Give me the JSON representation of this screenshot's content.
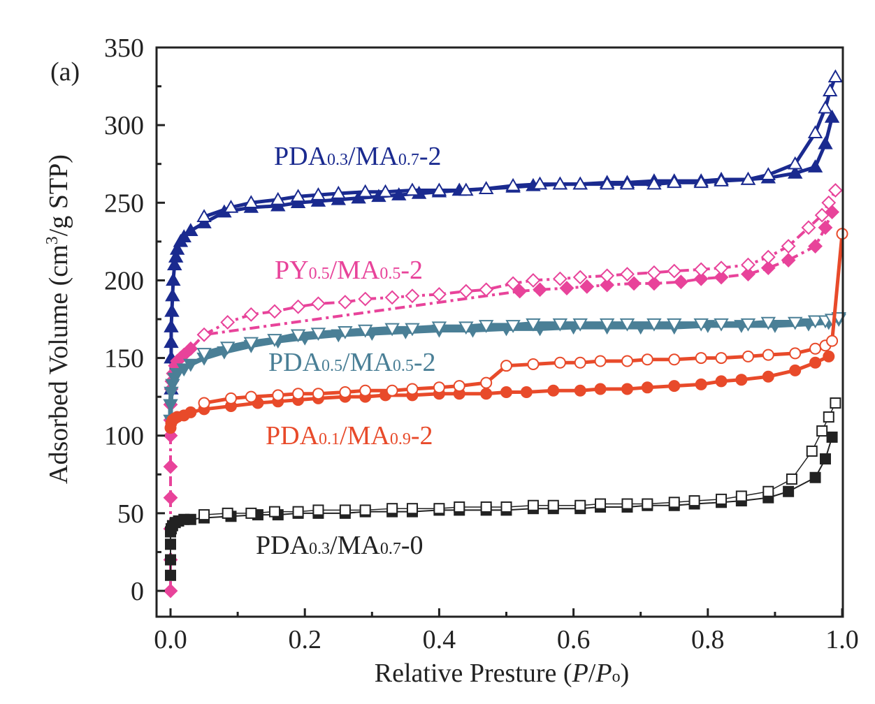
{
  "chart_data": {
    "type": "line",
    "panel_label": "(a)",
    "xlabel": {
      "pre": "Relative Presture (",
      "p1": "P",
      "slash": "/",
      "p2": "P",
      "sub": "o",
      "post": ")"
    },
    "ylabel": {
      "pre": "Adsorbed Volume (cm",
      "sup": "3",
      "post": "/g STP)"
    },
    "xlim": [
      0,
      1.0
    ],
    "ylim": [
      0,
      350
    ],
    "xticks": [
      "0.0",
      "0.2",
      "0.4",
      "0.6",
      "0.8",
      "1.0"
    ],
    "yticks": [
      "0",
      "50",
      "100",
      "150",
      "200",
      "250",
      "300",
      "350"
    ],
    "grid": false,
    "colors": {
      "navy": "#1a2a8f",
      "pink": "#e8439a",
      "teal": "#4a7f96",
      "red": "#e84a2a",
      "black": "#222222"
    },
    "series_labels": [
      {
        "parts": [
          [
            "PDA",
            false
          ],
          [
            "0.3",
            true
          ],
          [
            "/MA",
            false
          ],
          [
            "0.7",
            true
          ],
          [
            "-2",
            false
          ]
        ],
        "color": "#1a2a8f"
      },
      {
        "parts": [
          [
            "PY",
            false
          ],
          [
            "0.5",
            true
          ],
          [
            "/MA",
            false
          ],
          [
            "0.5",
            true
          ],
          [
            "-2",
            false
          ]
        ],
        "color": "#e8439a"
      },
      {
        "parts": [
          [
            "PDA",
            false
          ],
          [
            "0.5",
            true
          ],
          [
            "/MA",
            false
          ],
          [
            "0.5",
            true
          ],
          [
            "-2",
            false
          ]
        ],
        "color": "#4a7f96"
      },
      {
        "parts": [
          [
            "PDA",
            false
          ],
          [
            "0.1",
            true
          ],
          [
            "/MA",
            false
          ],
          [
            "0.9",
            true
          ],
          [
            "-2",
            false
          ]
        ],
        "color": "#e84a2a"
      },
      {
        "parts": [
          [
            "PDA",
            false
          ],
          [
            "0.3",
            true
          ],
          [
            "/MA",
            false
          ],
          [
            "0.7",
            true
          ],
          [
            "-0",
            false
          ]
        ],
        "color": "#222222"
      }
    ],
    "series": [
      {
        "id": "pda03-ma07-2-adsorption",
        "color": "#1a2a8f",
        "marker": "triangle",
        "filled": true,
        "dash": false,
        "stroke_width": 5,
        "x": [
          0.001,
          0.001,
          0.001,
          0.001,
          0.002,
          0.003,
          0.004,
          0.006,
          0.008,
          0.01,
          0.015,
          0.02,
          0.03,
          0.05,
          0.08,
          0.12,
          0.16,
          0.19,
          0.22,
          0.25,
          0.28,
          0.31,
          0.34,
          0.37,
          0.4,
          0.43,
          0.47,
          0.51,
          0.54,
          0.58,
          0.61,
          0.65,
          0.68,
          0.72,
          0.75,
          0.79,
          0.82,
          0.86,
          0.89,
          0.93,
          0.96,
          0.975,
          0.985
        ],
        "y": [
          130,
          150,
          160,
          170,
          180,
          190,
          200,
          210,
          215,
          220,
          225,
          228,
          232,
          237,
          244,
          247,
          248,
          250,
          251,
          252,
          253,
          254,
          255,
          256,
          257,
          258,
          259,
          260,
          261,
          262,
          262,
          263,
          263,
          264,
          264,
          264,
          265,
          265,
          266,
          269,
          273,
          288,
          305
        ]
      },
      {
        "id": "pda03-ma07-2-desorption",
        "color": "#1a2a8f",
        "marker": "triangle",
        "filled": false,
        "dash": false,
        "stroke_width": 5,
        "x": [
          0.05,
          0.09,
          0.12,
          0.16,
          0.19,
          0.22,
          0.25,
          0.29,
          0.32,
          0.36,
          0.4,
          0.44,
          0.47,
          0.51,
          0.55,
          0.58,
          0.61,
          0.65,
          0.68,
          0.72,
          0.75,
          0.79,
          0.82,
          0.86,
          0.89,
          0.93,
          0.96,
          0.975,
          0.982,
          0.99
        ],
        "y": [
          241,
          247,
          250,
          252,
          254,
          255,
          256,
          257,
          257,
          258,
          258,
          258,
          259,
          261,
          262,
          262,
          262,
          262,
          262,
          262,
          263,
          263,
          264,
          265,
          268,
          275,
          295,
          311,
          322,
          331
        ]
      },
      {
        "id": "py05-ma05-2-adsorption",
        "color": "#e8439a",
        "marker": "diamond",
        "filled": true,
        "dash": true,
        "stroke_width": 4,
        "x": [
          0.0,
          0.0,
          0.0,
          0.0,
          0.0,
          0.0,
          0.0,
          0.0,
          0.001,
          0.002,
          0.004,
          0.007,
          0.01,
          0.015,
          0.02,
          0.03,
          0.05,
          0.52,
          0.55,
          0.59,
          0.62,
          0.65,
          0.69,
          0.72,
          0.76,
          0.79,
          0.82,
          0.86,
          0.89,
          0.92,
          0.96,
          0.975,
          0.985
        ],
        "y": [
          0,
          20,
          40,
          60,
          80,
          100,
          110,
          120,
          130,
          135,
          140,
          145,
          148,
          150,
          152,
          156,
          165,
          193,
          194,
          195,
          196,
          197,
          198,
          198,
          199,
          201,
          202,
          204,
          208,
          213,
          222,
          234,
          244
        ]
      },
      {
        "id": "py05-ma05-2-desorption",
        "color": "#e8439a",
        "marker": "diamond",
        "filled": false,
        "dash": true,
        "stroke_width": 4,
        "x": [
          0.05,
          0.085,
          0.12,
          0.155,
          0.19,
          0.22,
          0.26,
          0.29,
          0.33,
          0.36,
          0.4,
          0.44,
          0.47,
          0.51,
          0.54,
          0.58,
          0.61,
          0.65,
          0.68,
          0.72,
          0.75,
          0.79,
          0.82,
          0.86,
          0.89,
          0.92,
          0.95,
          0.97,
          0.98,
          0.99
        ],
        "y": [
          165,
          173,
          178,
          180,
          183,
          185,
          186,
          188,
          189,
          190,
          191,
          193,
          194,
          198,
          200,
          201,
          202,
          203,
          204,
          205,
          206,
          207,
          208,
          210,
          215,
          222,
          234,
          242,
          250,
          258
        ]
      },
      {
        "id": "pda05-ma05-2-adsorption",
        "color": "#4a7f96",
        "marker": "tri-down",
        "filled": true,
        "dash": false,
        "stroke_width": 7,
        "x": [
          0.0,
          0.0,
          0.001,
          0.003,
          0.006,
          0.01,
          0.02,
          0.03,
          0.05,
          0.08,
          0.12,
          0.16,
          0.2,
          0.25,
          0.3,
          0.35,
          0.4,
          0.45,
          0.5,
          0.55,
          0.6,
          0.65,
          0.7,
          0.75,
          0.8,
          0.85,
          0.9,
          0.95,
          0.98,
          0.995
        ],
        "y": [
          110,
          120,
          128,
          133,
          137,
          140,
          143,
          146,
          150,
          154,
          158,
          161,
          163,
          165,
          166,
          167,
          168,
          168,
          169,
          169,
          170,
          170,
          170,
          170,
          171,
          171,
          171,
          172,
          173,
          175
        ]
      },
      {
        "id": "pda05-ma05-2-desorption",
        "color": "#4a7f96",
        "marker": "tri-down",
        "filled": false,
        "dash": false,
        "stroke_width": 7,
        "x": [
          0.05,
          0.085,
          0.12,
          0.155,
          0.19,
          0.22,
          0.26,
          0.29,
          0.33,
          0.36,
          0.4,
          0.44,
          0.47,
          0.51,
          0.54,
          0.58,
          0.61,
          0.65,
          0.68,
          0.72,
          0.75,
          0.79,
          0.82,
          0.86,
          0.89,
          0.93,
          0.96,
          0.975,
          0.985,
          0.995
        ],
        "y": [
          153,
          157,
          160,
          162,
          165,
          166,
          167,
          168,
          169,
          169,
          170,
          170,
          171,
          171,
          172,
          172,
          172,
          172,
          172,
          172,
          172,
          172,
          172,
          172,
          173,
          173,
          174,
          174,
          175,
          176
        ]
      },
      {
        "id": "pda01-ma09-2-adsorption",
        "color": "#e84a2a",
        "marker": "circle",
        "filled": true,
        "dash": false,
        "stroke_width": 5,
        "x": [
          0.0,
          0.001,
          0.003,
          0.006,
          0.01,
          0.02,
          0.03,
          0.05,
          0.09,
          0.13,
          0.16,
          0.19,
          0.22,
          0.26,
          0.29,
          0.32,
          0.36,
          0.4,
          0.43,
          0.47,
          0.5,
          0.53,
          0.57,
          0.61,
          0.64,
          0.68,
          0.71,
          0.75,
          0.79,
          0.82,
          0.85,
          0.89,
          0.93,
          0.96,
          0.98
        ],
        "y": [
          105,
          108,
          110,
          111,
          112,
          113,
          115,
          117,
          119,
          121,
          122,
          123,
          124,
          125,
          125,
          126,
          126,
          127,
          127,
          127,
          128,
          128,
          129,
          129,
          130,
          130,
          131,
          132,
          133,
          135,
          136,
          138,
          142,
          147,
          151
        ]
      },
      {
        "id": "pda01-ma09-2-desorption",
        "color": "#e84a2a",
        "marker": "circle",
        "filled": false,
        "dash": false,
        "stroke_width": 5,
        "x": [
          0.05,
          0.09,
          0.12,
          0.16,
          0.19,
          0.22,
          0.26,
          0.29,
          0.33,
          0.36,
          0.4,
          0.43,
          0.47,
          0.5,
          0.54,
          0.58,
          0.61,
          0.64,
          0.68,
          0.71,
          0.75,
          0.79,
          0.82,
          0.86,
          0.89,
          0.93,
          0.96,
          0.975,
          0.985,
          1.0
        ],
        "y": [
          121,
          124,
          125,
          126,
          127,
          127,
          128,
          129,
          129,
          130,
          131,
          132,
          134,
          145,
          146,
          147,
          147,
          148,
          148,
          149,
          149,
          150,
          150,
          151,
          152,
          153,
          156,
          158,
          161,
          230
        ]
      },
      {
        "id": "pda03-ma07-0-adsorption",
        "color": "#222222",
        "marker": "square",
        "filled": true,
        "dash": false,
        "stroke_width": 2,
        "x": [
          0.0,
          0.0,
          0.0,
          0.0,
          0.001,
          0.003,
          0.007,
          0.012,
          0.02,
          0.03,
          0.05,
          0.09,
          0.13,
          0.16,
          0.19,
          0.22,
          0.26,
          0.29,
          0.33,
          0.36,
          0.4,
          0.43,
          0.47,
          0.5,
          0.54,
          0.57,
          0.61,
          0.64,
          0.68,
          0.71,
          0.75,
          0.78,
          0.82,
          0.85,
          0.89,
          0.92,
          0.96,
          0.975,
          0.985
        ],
        "y": [
          10,
          20,
          30,
          38,
          40,
          42,
          44,
          45,
          46,
          46,
          47,
          48,
          49,
          49,
          50,
          50,
          50,
          51,
          51,
          51,
          52,
          52,
          52,
          52,
          53,
          53,
          53,
          54,
          54,
          55,
          55,
          56,
          57,
          58,
          60,
          64,
          73,
          85,
          99
        ]
      },
      {
        "id": "pda03-ma07-0-desorption",
        "color": "#222222",
        "marker": "square",
        "filled": false,
        "dash": false,
        "stroke_width": 1.5,
        "x": [
          0.05,
          0.085,
          0.12,
          0.155,
          0.19,
          0.22,
          0.26,
          0.29,
          0.33,
          0.36,
          0.4,
          0.43,
          0.47,
          0.5,
          0.54,
          0.57,
          0.61,
          0.64,
          0.68,
          0.71,
          0.75,
          0.78,
          0.82,
          0.85,
          0.89,
          0.925,
          0.955,
          0.97,
          0.98,
          0.99
        ],
        "y": [
          49,
          50,
          50,
          51,
          51,
          52,
          52,
          52,
          53,
          53,
          53,
          54,
          54,
          54,
          55,
          55,
          55,
          56,
          56,
          56,
          57,
          58,
          59,
          61,
          64,
          72,
          90,
          103,
          112,
          121
        ]
      }
    ]
  }
}
